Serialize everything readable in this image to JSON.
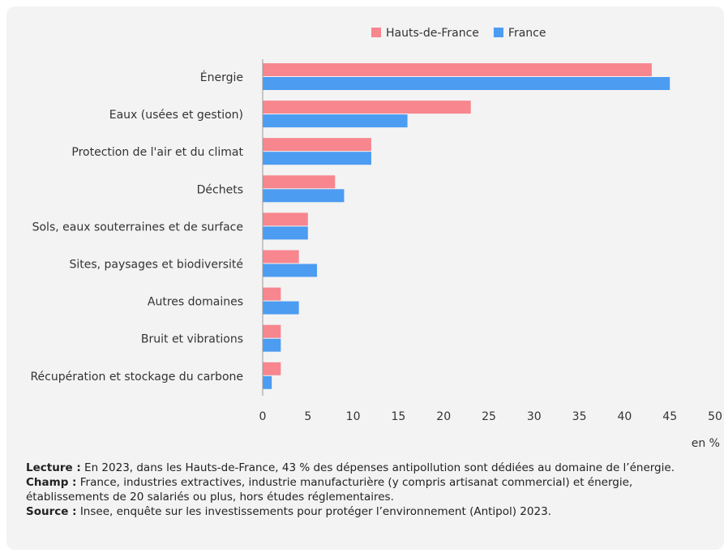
{
  "chart_data": {
    "type": "bar",
    "orientation": "horizontal",
    "categories": [
      "Énergie",
      "Eaux (usées et gestion)",
      "Protection de l'air et du climat",
      "Déchets",
      "Sols, eaux souterraines et de surface",
      "Sites, paysages et biodiversité",
      "Autres domaines",
      "Bruit et vibrations",
      "Récupération et stockage du carbone"
    ],
    "series": [
      {
        "name": "Hauts-de-France",
        "color": "#f7868f",
        "values": [
          43,
          23,
          12,
          8,
          5,
          4,
          2,
          2,
          2
        ]
      },
      {
        "name": "France",
        "color": "#4c9cf1",
        "values": [
          45,
          16,
          12,
          9,
          5,
          6,
          4,
          2,
          1
        ]
      }
    ],
    "xlim": [
      0,
      50
    ],
    "xticks": [
      "0",
      "5",
      "10",
      "15",
      "20",
      "25",
      "30",
      "35",
      "40",
      "45",
      "50"
    ],
    "xunit": "en %",
    "legend_position": "top",
    "grid": false
  },
  "notes": {
    "lecture_label": "Lecture :",
    "lecture_text": "En 2023, dans les Hauts-de-France, 43 % des dépenses antipollution sont dédiées au domaine de l’énergie.",
    "champ_label": "Champ :",
    "champ_text": "France, industries extractives, industrie manufacturière (y compris artisanat commercial) et énergie, établissements de 20 salariés ou plus, hors études réglementaires.",
    "source_label": "Source :",
    "source_text": "Insee, enquête sur les investissements pour protéger l’environnement (Antipol) 2023."
  }
}
